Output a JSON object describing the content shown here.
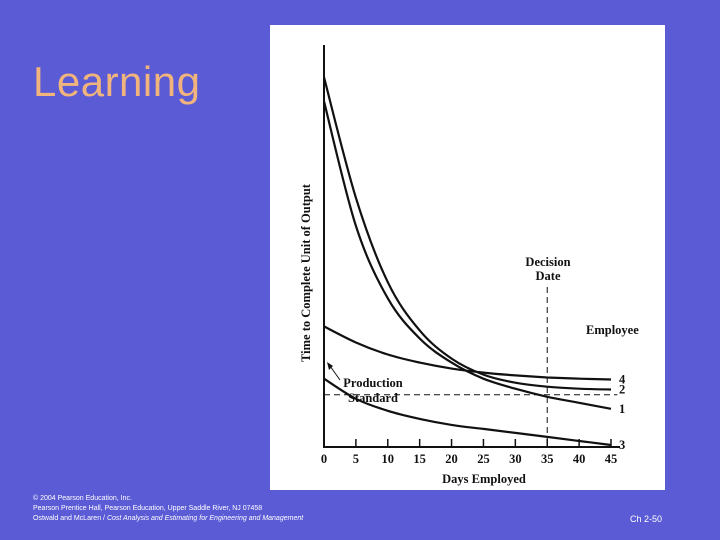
{
  "slide": {
    "title": "Learning",
    "footer_line1": "© 2004 Pearson Education, Inc.",
    "footer_line2": "Pearson Prentice Hall, Pearson Education, Upper Saddle River, NJ 07458",
    "footer_line3_author": "Ostwald and McLaren / ",
    "footer_line3_book": "Cost Analysis and Estimating for Engineering and Management",
    "slide_number": "Ch 2-50"
  },
  "colors": {
    "background": "#5b5bd6",
    "title": "#f0b47c",
    "panel": "#ffffff",
    "ink": "#111111"
  },
  "chart_data": {
    "type": "line",
    "xlabel": "Days Employed",
    "ylabel": "Time to Complete Unit of Output",
    "x_ticks": [
      0,
      5,
      10,
      15,
      20,
      25,
      30,
      35,
      40,
      45
    ],
    "xlim": [
      0,
      47
    ],
    "ylim": [
      0,
      100
    ],
    "grid": false,
    "legend_title": "Employee",
    "series": [
      {
        "name": "1",
        "x": [
          0,
          5,
          10,
          15,
          20,
          25,
          30,
          35,
          40,
          45
        ],
        "y": [
          86,
          55,
          37,
          27,
          21,
          17,
          14.5,
          12.5,
          11,
          9.5
        ]
      },
      {
        "name": "2",
        "x": [
          0,
          5,
          10,
          15,
          20,
          25,
          30,
          35,
          40,
          45
        ],
        "y": [
          92,
          62,
          41,
          29,
          22,
          18,
          16,
          15,
          14.5,
          14.3
        ]
      },
      {
        "name": "3",
        "x": [
          0,
          5,
          10,
          15,
          20,
          25,
          30,
          35,
          40,
          45
        ],
        "y": [
          17,
          12,
          9,
          7,
          5.5,
          4.5,
          3.5,
          2.5,
          1.5,
          0.5
        ]
      },
      {
        "name": "4",
        "x": [
          0,
          5,
          10,
          15,
          20,
          25,
          30,
          35,
          40,
          45
        ],
        "y": [
          30,
          26,
          23,
          21,
          19.5,
          18.5,
          17.8,
          17.3,
          17,
          16.8
        ]
      }
    ],
    "reference_lines": [
      {
        "type": "horizontal",
        "y": 13,
        "style": "dashed",
        "label": "Production Standard"
      },
      {
        "type": "vertical",
        "x": 35,
        "style": "dashed",
        "label": "Decision Date"
      }
    ]
  }
}
